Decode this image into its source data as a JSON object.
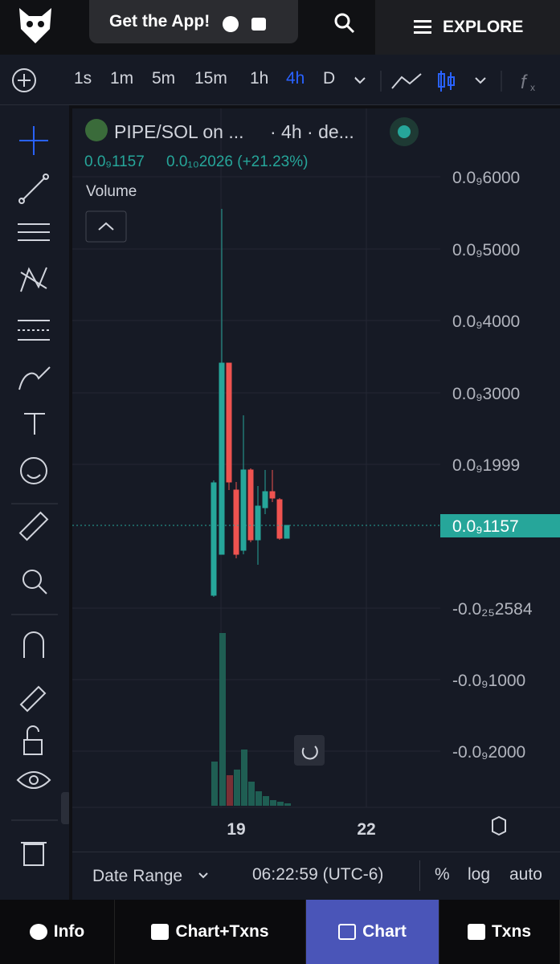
{
  "header": {
    "app_button": "Get the App!",
    "explore": "EXPLORE"
  },
  "toolbar": {
    "timeframes": [
      "1s",
      "1m",
      "5m",
      "15m",
      "1h",
      "4h",
      "D"
    ],
    "active_timeframe": "4h"
  },
  "chart": {
    "symbol": "PIPE/SOL on ...",
    "interval": "· 4h · de...",
    "ohlc": [
      "0.0₉1157",
      "0.0₁₀2026 (+21.23%)"
    ],
    "volume_label": "Volume",
    "price_labels": [
      "0.0₉6000",
      "0.0₉5000",
      "0.0₉4000",
      "0.0₉3000",
      "0.0₉1999",
      "-0.0₂₅2584",
      "-0.0₉1000",
      "-0.0₉2000"
    ],
    "current_price": "0.0₉1157",
    "time_labels": [
      "19",
      "22"
    ]
  },
  "footer": {
    "date_range": "Date Range",
    "time": "06:22:59 (UTC-6)",
    "options": [
      "%",
      "log",
      "auto"
    ]
  },
  "tabs": [
    "Info",
    "Chart+Txns",
    "Chart",
    "Txns"
  ],
  "active_tab": "Chart"
}
